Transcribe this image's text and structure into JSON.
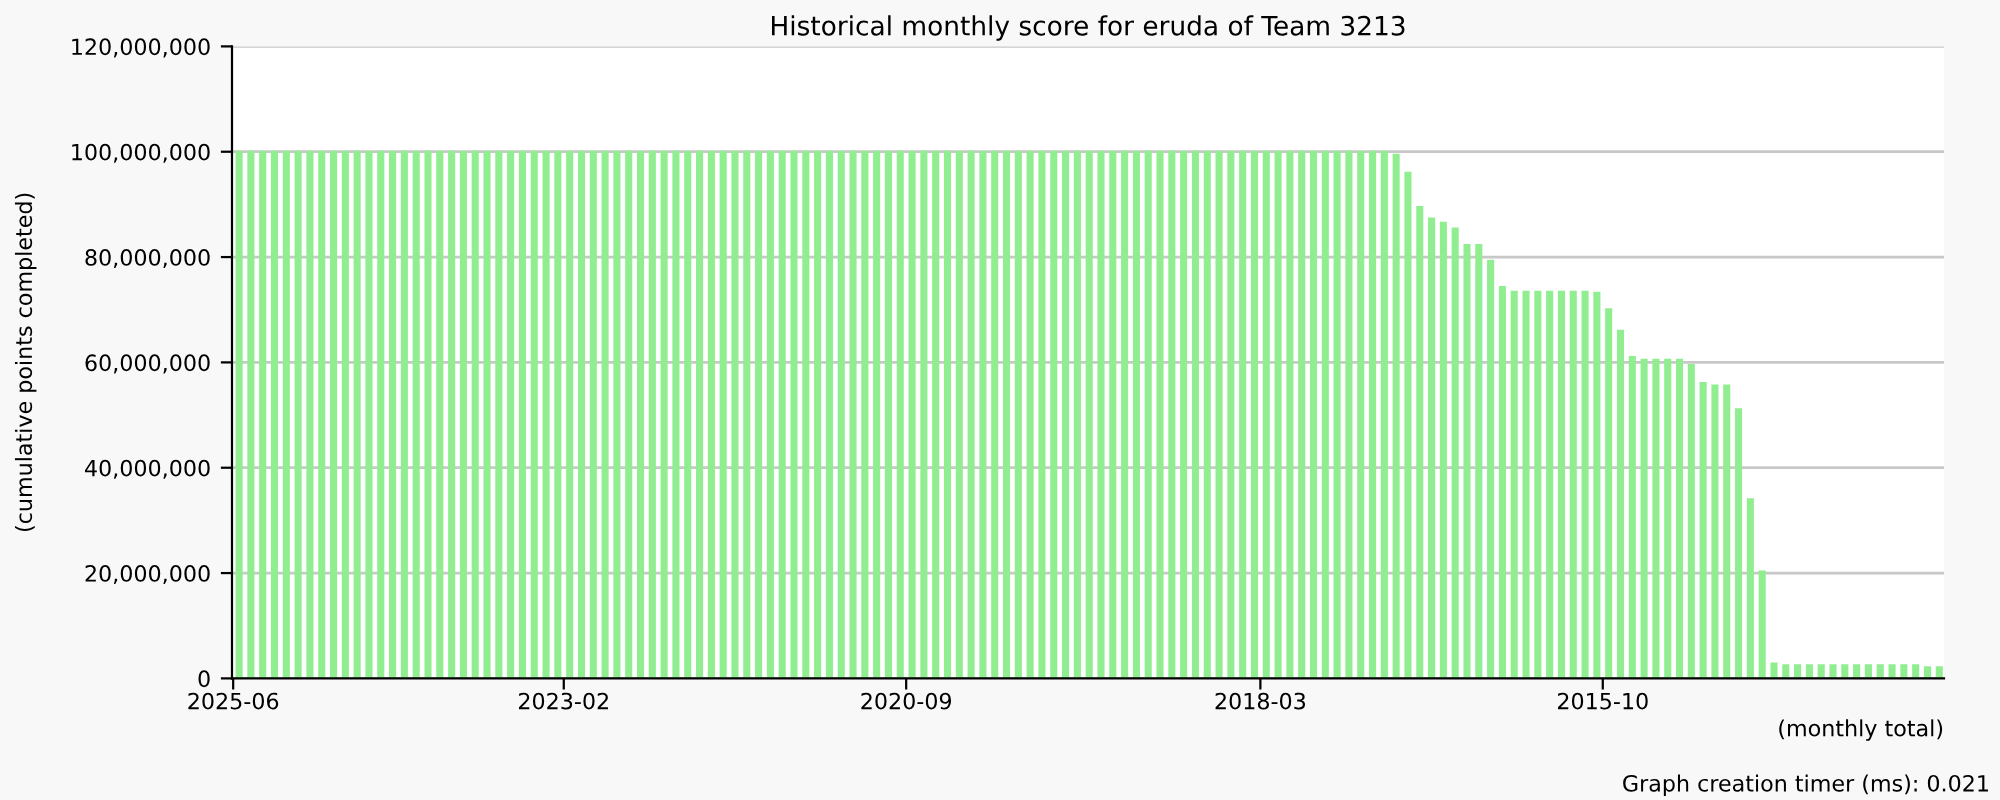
{
  "chart_data": {
    "type": "bar",
    "title": "Historical monthly score for eruda of Team 3213",
    "ylabel": "(cumulative points completed)",
    "xlabel": "(monthly total)",
    "annotations": [
      "Graph creation timer (ms): 0.021"
    ],
    "categories": [
      "2025-06",
      null,
      null,
      null,
      null,
      null,
      null,
      null,
      null,
      null,
      null,
      null,
      null,
      null,
      null,
      null,
      null,
      null,
      null,
      null,
      null,
      null,
      null,
      null,
      null,
      null,
      null,
      null,
      "2023-02",
      null,
      null,
      null,
      null,
      null,
      null,
      null,
      null,
      null,
      null,
      null,
      null,
      null,
      null,
      null,
      null,
      null,
      null,
      null,
      null,
      null,
      null,
      null,
      null,
      null,
      null,
      null,
      null,
      "2020-09",
      null,
      null,
      null,
      null,
      null,
      null,
      null,
      null,
      null,
      null,
      null,
      null,
      null,
      null,
      null,
      null,
      null,
      null,
      null,
      null,
      null,
      null,
      null,
      null,
      null,
      null,
      null,
      null,
      null,
      "2018-03",
      null,
      null,
      null,
      null,
      null,
      null,
      null,
      null,
      null,
      null,
      null,
      null,
      null,
      null,
      null,
      null,
      null,
      null,
      null,
      null,
      null,
      null,
      null,
      null,
      null,
      null,
      null,
      null,
      "2015-10",
      null,
      null,
      null,
      null,
      null,
      null,
      null,
      null,
      null,
      null,
      null,
      null,
      null,
      null,
      null,
      null,
      null,
      null,
      null,
      null,
      null,
      null,
      null,
      null,
      null,
      null,
      null,
      null
    ],
    "values": [
      100200000,
      100200000,
      100200000,
      100200000,
      100200000,
      100200000,
      100200000,
      100200000,
      100200000,
      100200000,
      100200000,
      100200000,
      100200000,
      100200000,
      100200000,
      100200000,
      100200000,
      100200000,
      100200000,
      100200000,
      100200000,
      100200000,
      100200000,
      100200000,
      100200000,
      100200000,
      100200000,
      100200000,
      100200000,
      100200000,
      100200000,
      100200000,
      100200000,
      100200000,
      100200000,
      100200000,
      100200000,
      100200000,
      100200000,
      100200000,
      100200000,
      100200000,
      100200000,
      100200000,
      100200000,
      100200000,
      100200000,
      100200000,
      100200000,
      100200000,
      100200000,
      100200000,
      100200000,
      100200000,
      100200000,
      100200000,
      100200000,
      100200000,
      100200000,
      100200000,
      100200000,
      100200000,
      100200000,
      100200000,
      100200000,
      100200000,
      100200000,
      100200000,
      100200000,
      100200000,
      100200000,
      100200000,
      100200000,
      100200000,
      100200000,
      100200000,
      100200000,
      100200000,
      100200000,
      100200000,
      100200000,
      100200000,
      100200000,
      100200000,
      100200000,
      100200000,
      100200000,
      100200000,
      100200000,
      100200000,
      100200000,
      100200000,
      100200000,
      100200000,
      100200000,
      100200000,
      100200000,
      100200000,
      99600000,
      96200000,
      89700000,
      87500000,
      86700000,
      85600000,
      82500000,
      82500000,
      79500000,
      74500000,
      73600000,
      73600000,
      73600000,
      73600000,
      73600000,
      73600000,
      73600000,
      73400000,
      70300000,
      66200000,
      61200000,
      60700000,
      60700000,
      60700000,
      60700000,
      59700000,
      56300000,
      55800000,
      55800000,
      51300000,
      34200000,
      20500000,
      3000000,
      2700000,
      2700000,
      2700000,
      2700000,
      2700000,
      2700000,
      2700000,
      2700000,
      2700000,
      2700000,
      2700000,
      2700000,
      2300000,
      2300000
    ],
    "color": "#90ee90",
    "ylim": [
      0,
      120000000
    ],
    "yticks": [
      {
        "value": 0,
        "label": "0"
      },
      {
        "value": 20000000,
        "label": "20,000,000"
      },
      {
        "value": 40000000,
        "label": "40,000,000"
      },
      {
        "value": 60000000,
        "label": "60,000,000"
      },
      {
        "value": 80000000,
        "label": "80,000,000"
      },
      {
        "value": 100000000,
        "label": "100,000,000"
      },
      {
        "value": 120000000,
        "label": "120,000,000"
      }
    ],
    "grid": "y",
    "legend": false
  }
}
